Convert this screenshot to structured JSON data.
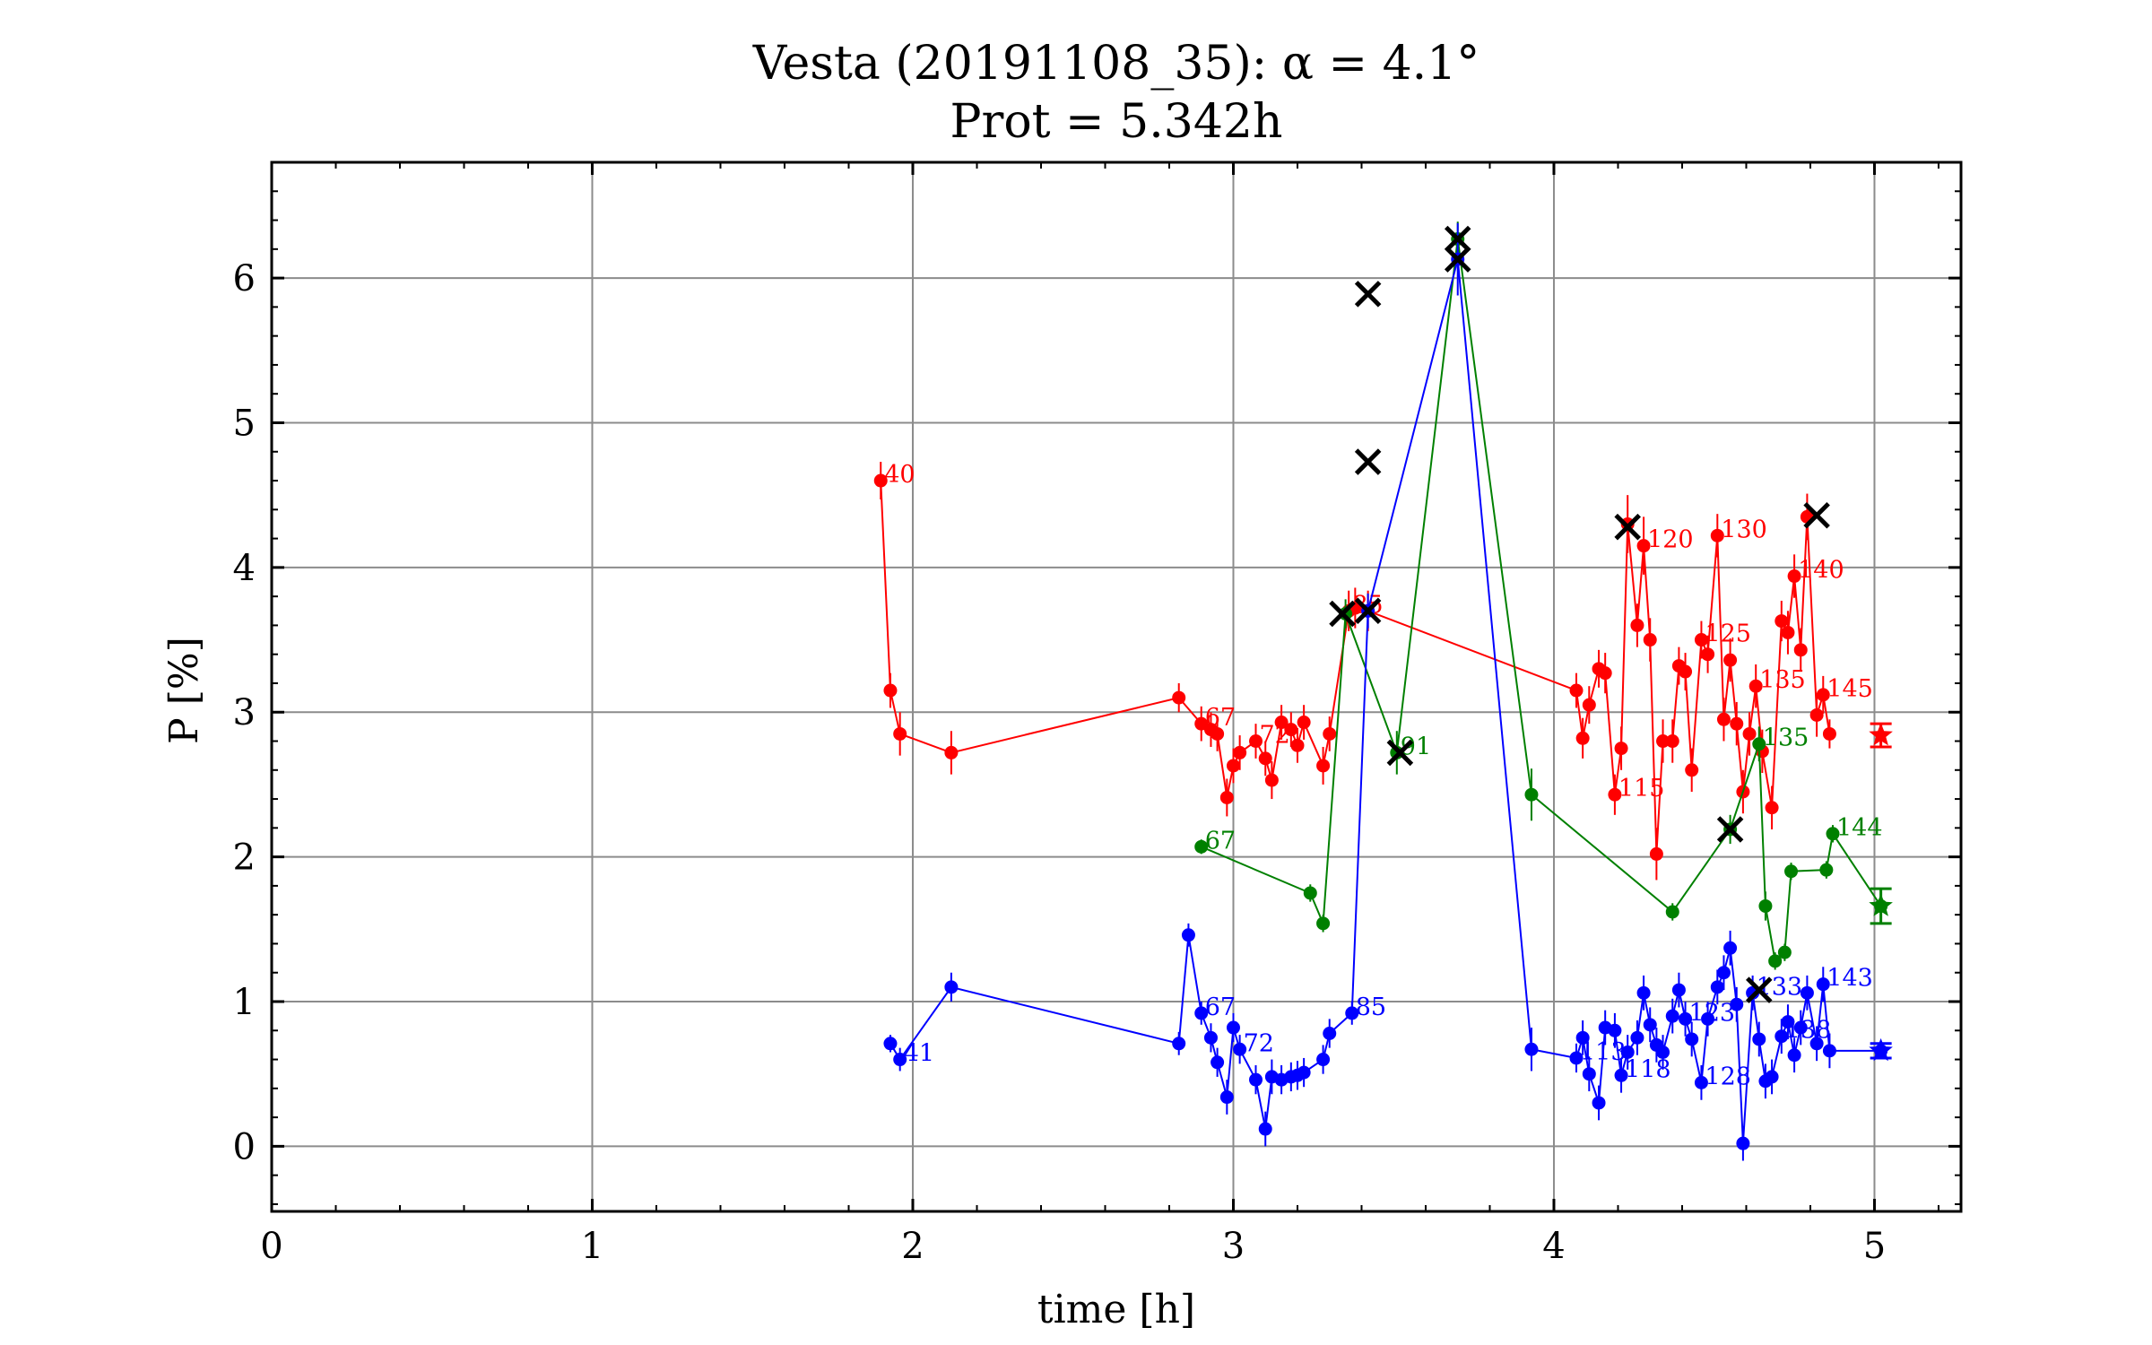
{
  "chart_data": {
    "type": "scatter",
    "title_line1": "Vesta (20191108_35): α = 4.1°",
    "title_line2": "Prot = 5.342h",
    "xlabel": "time [h]",
    "ylabel": "P [%]",
    "xlim": [
      0,
      5.27
    ],
    "ylim": [
      -0.45,
      6.8
    ],
    "xticks": [
      "0",
      "1",
      "2",
      "3",
      "4",
      "5"
    ],
    "yticks": [
      "0",
      "1",
      "2",
      "3",
      "4",
      "5",
      "6"
    ],
    "xtick_values": [
      0,
      1,
      2,
      3,
      4,
      5
    ],
    "ytick_values": [
      0,
      1,
      2,
      3,
      4,
      5,
      6
    ],
    "grid": true,
    "series": [
      {
        "color": "#ff0000",
        "x": [
          1.9,
          1.93,
          1.96,
          2.12,
          2.83,
          2.9,
          2.93,
          2.95,
          2.98,
          3.0,
          3.02,
          3.07,
          3.1,
          3.12,
          3.15,
          3.18,
          3.2,
          3.22,
          3.28,
          3.3,
          3.36,
          3.38,
          3.42,
          4.07,
          4.09,
          4.11,
          4.14,
          4.16,
          4.19,
          4.21,
          4.23,
          4.26,
          4.28,
          4.3,
          4.32,
          4.34,
          4.37,
          4.39,
          4.41,
          4.43,
          4.46,
          4.48,
          4.51,
          4.53,
          4.55,
          4.57,
          4.59,
          4.61,
          4.63,
          4.65,
          4.68,
          4.71,
          4.73,
          4.75,
          4.77,
          4.79,
          4.82,
          4.84,
          4.86
        ],
        "y": [
          4.6,
          3.15,
          2.85,
          2.72,
          3.1,
          2.92,
          2.88,
          2.85,
          2.41,
          2.63,
          2.72,
          2.8,
          2.68,
          2.53,
          2.93,
          2.88,
          2.77,
          2.93,
          2.63,
          2.85,
          3.7,
          3.72,
          3.7,
          3.15,
          2.82,
          3.05,
          3.3,
          3.27,
          2.43,
          2.75,
          4.3,
          3.6,
          4.15,
          3.5,
          2.02,
          2.8,
          2.8,
          3.32,
          3.28,
          2.6,
          3.5,
          3.4,
          4.22,
          2.95,
          3.36,
          2.92,
          2.45,
          2.85,
          3.18,
          2.73,
          2.34,
          3.63,
          3.55,
          3.94,
          3.43,
          4.35,
          2.98,
          3.12,
          2.85
        ],
        "errors": [
          0.13,
          0.12,
          0.15,
          0.15,
          0.1,
          0.12,
          0.12,
          0.12,
          0.13,
          0.12,
          0.12,
          0.12,
          0.12,
          0.13,
          0.12,
          0.12,
          0.12,
          0.12,
          0.13,
          0.12,
          0.14,
          0.14,
          0.14,
          0.12,
          0.14,
          0.13,
          0.13,
          0.14,
          0.14,
          0.15,
          0.2,
          0.15,
          0.2,
          0.15,
          0.18,
          0.15,
          0.15,
          0.13,
          0.13,
          0.15,
          0.13,
          0.13,
          0.15,
          0.15,
          0.15,
          0.15,
          0.15,
          0.15,
          0.15,
          0.15,
          0.15,
          0.14,
          0.15,
          0.15,
          0.15,
          0.16,
          0.15,
          0.13,
          0.1
        ],
        "labels": [
          {
            "i": 0,
            "text": "40"
          },
          {
            "i": 5,
            "text": "67"
          },
          {
            "i": 11,
            "text": "72"
          },
          {
            "i": 20,
            "text": "85"
          },
          {
            "i": 28,
            "text": "115"
          },
          {
            "i": 32,
            "text": "120"
          },
          {
            "i": 40,
            "text": "125"
          },
          {
            "i": 42,
            "text": "130"
          },
          {
            "i": 48,
            "text": "135"
          },
          {
            "i": 53,
            "text": "140"
          },
          {
            "i": 57,
            "text": "145"
          }
        ]
      },
      {
        "color": "#008000",
        "x": [
          2.9,
          3.24,
          3.28,
          3.35,
          3.51,
          3.7,
          3.93,
          4.37,
          4.55,
          4.64,
          4.66,
          4.69,
          4.72,
          4.74,
          4.85,
          4.87,
          5.02
        ],
        "y": [
          2.07,
          1.75,
          1.54,
          3.68,
          2.72,
          6.27,
          2.43,
          1.62,
          2.19,
          2.78,
          1.66,
          1.28,
          1.34,
          1.9,
          1.91,
          2.16,
          1.66
        ],
        "errors": [
          0.05,
          0.06,
          0.06,
          0.1,
          0.15,
          0.12,
          0.18,
          0.06,
          0.1,
          0.12,
          0.1,
          0.06,
          0.06,
          0.06,
          0.06,
          0.06,
          0.12
        ],
        "labels": [
          {
            "i": 0,
            "text": "67"
          },
          {
            "i": 4,
            "text": "91"
          },
          {
            "i": 9,
            "text": "135"
          },
          {
            "i": 15,
            "text": "144"
          }
        ]
      },
      {
        "color": "#0000ff",
        "x": [
          1.93,
          1.96,
          2.12,
          2.83,
          2.86,
          2.9,
          2.93,
          2.95,
          2.98,
          3.0,
          3.02,
          3.07,
          3.1,
          3.12,
          3.15,
          3.18,
          3.2,
          3.22,
          3.28,
          3.3,
          3.37,
          3.42,
          3.7,
          3.93,
          4.07,
          4.09,
          4.11,
          4.14,
          4.16,
          4.19,
          4.21,
          4.23,
          4.26,
          4.28,
          4.3,
          4.32,
          4.34,
          4.37,
          4.39,
          4.41,
          4.43,
          4.46,
          4.48,
          4.51,
          4.53,
          4.55,
          4.57,
          4.59,
          4.62,
          4.64,
          4.66,
          4.68,
          4.71,
          4.73,
          4.75,
          4.77,
          4.79,
          4.82,
          4.84,
          4.86,
          5.02
        ],
        "y": [
          0.71,
          0.6,
          1.1,
          0.71,
          1.46,
          0.92,
          0.75,
          0.58,
          0.34,
          0.82,
          0.67,
          0.46,
          0.12,
          0.48,
          0.46,
          0.48,
          0.49,
          0.51,
          0.6,
          0.78,
          0.92,
          3.7,
          6.13,
          0.67,
          0.61,
          0.75,
          0.5,
          0.3,
          0.82,
          0.8,
          0.49,
          0.65,
          0.75,
          1.06,
          0.84,
          0.7,
          0.65,
          0.9,
          1.08,
          0.88,
          0.74,
          0.44,
          0.88,
          1.1,
          1.2,
          1.37,
          0.98,
          0.02,
          1.06,
          0.74,
          0.45,
          0.48,
          0.76,
          0.86,
          0.63,
          0.82,
          1.06,
          0.71,
          1.12,
          0.66,
          0.66
        ],
        "errors": [
          0.06,
          0.08,
          0.1,
          0.08,
          0.08,
          0.08,
          0.1,
          0.1,
          0.12,
          0.1,
          0.1,
          0.1,
          0.12,
          0.12,
          0.1,
          0.1,
          0.1,
          0.1,
          0.1,
          0.1,
          0.08,
          0.12,
          0.25,
          0.15,
          0.1,
          0.12,
          0.12,
          0.12,
          0.12,
          0.12,
          0.12,
          0.12,
          0.12,
          0.12,
          0.12,
          0.12,
          0.12,
          0.12,
          0.12,
          0.12,
          0.12,
          0.12,
          0.12,
          0.12,
          0.12,
          0.12,
          0.12,
          0.12,
          0.12,
          0.12,
          0.12,
          0.12,
          0.12,
          0.12,
          0.12,
          0.12,
          0.12,
          0.12,
          0.12,
          0.12,
          0.05
        ],
        "labels": [
          {
            "i": 1,
            "text": "41"
          },
          {
            "i": 5,
            "text": "67"
          },
          {
            "i": 10,
            "text": "72"
          },
          {
            "i": 20,
            "text": "85"
          },
          {
            "i": 24,
            "text": "113"
          },
          {
            "i": 30,
            "text": "118"
          },
          {
            "i": 39,
            "text": "123"
          },
          {
            "i": 41,
            "text": "128"
          },
          {
            "i": 48,
            "text": "133"
          },
          {
            "i": 52,
            "text": "138"
          },
          {
            "i": 58,
            "text": "143"
          }
        ]
      }
    ],
    "outliers": [
      {
        "x": 3.42,
        "y": 5.89
      },
      {
        "x": 3.7,
        "y": 6.27
      },
      {
        "x": 3.7,
        "y": 6.13
      },
      {
        "x": 3.42,
        "y": 4.73
      },
      {
        "x": 4.23,
        "y": 4.28
      },
      {
        "x": 4.82,
        "y": 4.36
      },
      {
        "x": 3.34,
        "y": 3.68
      },
      {
        "x": 3.42,
        "y": 3.7
      },
      {
        "x": 3.52,
        "y": 2.72
      },
      {
        "x": 4.55,
        "y": 2.19
      },
      {
        "x": 4.64,
        "y": 1.08
      }
    ],
    "means": [
      {
        "color": "#ff0000",
        "x": 5.02,
        "y": 2.84,
        "error": 0.08
      },
      {
        "color": "#008000",
        "x": 5.02,
        "y": 1.66,
        "error": 0.12
      },
      {
        "color": "#0000ff",
        "x": 5.02,
        "y": 0.66,
        "error": 0.05
      }
    ]
  }
}
